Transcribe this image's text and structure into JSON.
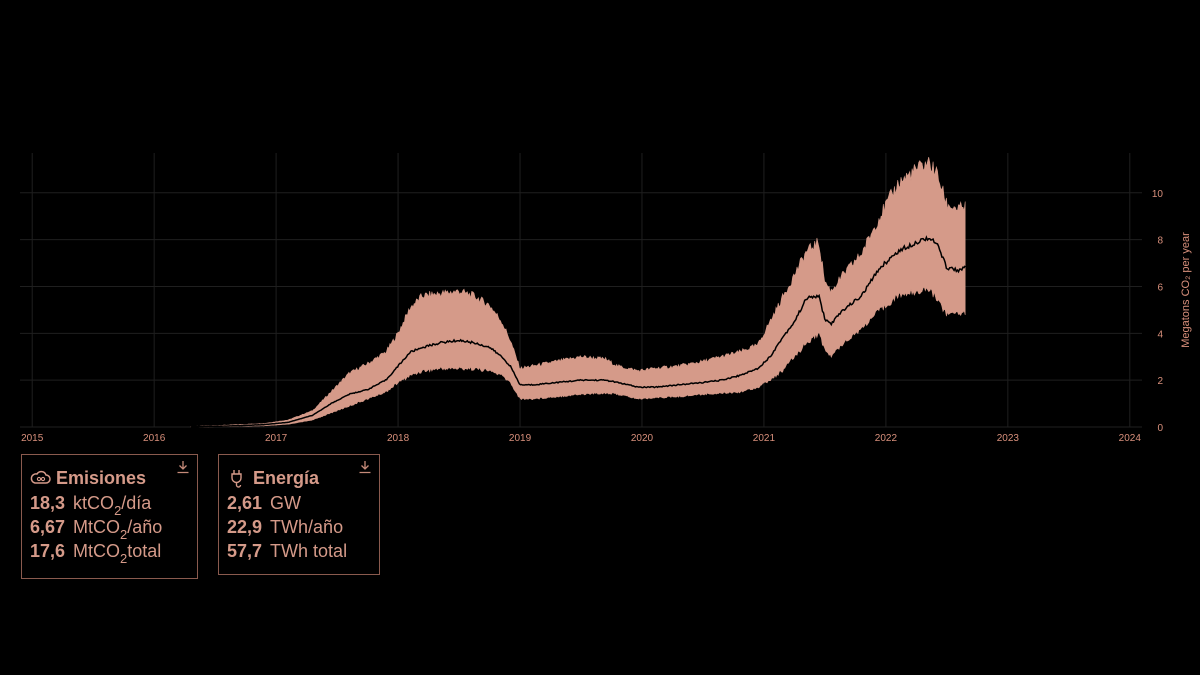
{
  "chart_data": {
    "type": "area",
    "title": "",
    "xlabel": "",
    "ylabel": "Megatons CO₂ per year",
    "x_ticks": [
      "2015",
      "2016",
      "2017",
      "2018",
      "2019",
      "2020",
      "2021",
      "2022",
      "2023",
      "2024"
    ],
    "y_ticks": [
      0,
      2,
      4,
      6,
      8,
      10
    ],
    "xlim": [
      2014.9,
      2024.1
    ],
    "ylim": [
      0,
      11.7
    ],
    "grid": true,
    "y_axis_side": "right",
    "colors": {
      "band": "#d59a89",
      "line": "#000000",
      "text": "#d9907c",
      "grid": "#1f1f1f"
    },
    "series": [
      {
        "role": "range",
        "x": [
          2016.3,
          2016.6,
          2016.9,
          2017.1,
          2017.3,
          2017.45,
          2017.6,
          2017.75,
          2017.9,
          2018.0,
          2018.1,
          2018.2,
          2018.35,
          2018.5,
          2018.62,
          2018.75,
          2018.85,
          2018.92,
          2019.0,
          2019.1,
          2019.3,
          2019.5,
          2019.7,
          2019.8,
          2019.97,
          2020.1,
          2020.3,
          2020.5,
          2020.65,
          2020.8,
          2020.95,
          2021.05,
          2021.15,
          2021.25,
          2021.35,
          2021.45,
          2021.5,
          2021.55,
          2021.65,
          2021.8,
          2021.95,
          2022.1,
          2022.25,
          2022.35,
          2022.42,
          2022.5,
          2022.6,
          2022.65
        ],
        "upper": [
          0.02,
          0.08,
          0.15,
          0.3,
          0.7,
          1.5,
          2.3,
          2.7,
          3.2,
          4.0,
          5.1,
          5.6,
          5.7,
          5.8,
          5.6,
          5.2,
          4.5,
          3.7,
          2.5,
          2.6,
          2.8,
          3.0,
          2.9,
          2.6,
          2.4,
          2.5,
          2.6,
          2.8,
          3.0,
          3.2,
          3.5,
          4.5,
          5.5,
          6.5,
          7.5,
          7.9,
          6.2,
          5.8,
          6.5,
          7.4,
          9.0,
          10.4,
          11.0,
          11.3,
          10.8,
          9.5,
          9.3,
          9.4
        ],
        "lower": [
          0.0,
          0.02,
          0.05,
          0.12,
          0.3,
          0.6,
          0.9,
          1.2,
          1.5,
          1.9,
          2.2,
          2.4,
          2.5,
          2.5,
          2.5,
          2.4,
          2.2,
          1.9,
          1.2,
          1.2,
          1.3,
          1.4,
          1.45,
          1.4,
          1.2,
          1.25,
          1.3,
          1.4,
          1.45,
          1.5,
          1.7,
          2.0,
          2.4,
          3.0,
          3.6,
          4.0,
          3.3,
          3.0,
          3.6,
          4.2,
          5.0,
          5.6,
          5.8,
          5.9,
          5.5,
          4.8,
          4.9,
          4.9
        ]
      },
      {
        "role": "central",
        "x": [
          2016.3,
          2016.6,
          2016.9,
          2017.1,
          2017.3,
          2017.45,
          2017.6,
          2017.75,
          2017.9,
          2018.0,
          2018.1,
          2018.2,
          2018.35,
          2018.5,
          2018.62,
          2018.75,
          2018.85,
          2018.92,
          2019.0,
          2019.1,
          2019.3,
          2019.5,
          2019.7,
          2019.8,
          2019.97,
          2020.1,
          2020.3,
          2020.5,
          2020.65,
          2020.8,
          2020.95,
          2021.05,
          2021.15,
          2021.25,
          2021.35,
          2021.45,
          2021.5,
          2021.55,
          2021.65,
          2021.8,
          2021.95,
          2022.1,
          2022.25,
          2022.35,
          2022.42,
          2022.5,
          2022.6,
          2022.65
        ],
        "values": [
          0.01,
          0.04,
          0.1,
          0.2,
          0.5,
          1.0,
          1.4,
          1.6,
          2.0,
          2.6,
          3.2,
          3.4,
          3.6,
          3.7,
          3.6,
          3.4,
          3.0,
          2.6,
          1.8,
          1.8,
          1.9,
          2.0,
          2.0,
          1.9,
          1.7,
          1.7,
          1.8,
          1.9,
          2.0,
          2.2,
          2.5,
          3.0,
          3.8,
          4.5,
          5.5,
          5.6,
          4.6,
          4.4,
          5.0,
          5.6,
          6.8,
          7.5,
          7.9,
          8.1,
          7.8,
          6.8,
          6.7,
          6.8
        ]
      }
    ]
  },
  "cards": {
    "emissions": {
      "title": "Emisiones",
      "icon": "cloud-co2-icon",
      "rows": [
        {
          "value": "18,3",
          "unit_prefix": "ktCO",
          "unit_sub": "2",
          "unit_suffix": "/día"
        },
        {
          "value": "6,67",
          "unit_prefix": "MtCO",
          "unit_sub": "2",
          "unit_suffix": "/año"
        },
        {
          "value": "17,6",
          "unit_prefix": "MtCO",
          "unit_sub": "2",
          "unit_suffix": "total"
        }
      ]
    },
    "energy": {
      "title": "Energía",
      "icon": "plug-icon",
      "rows": [
        {
          "value": "2,61",
          "unit": "GW"
        },
        {
          "value": "22,9",
          "unit": "TWh/año"
        },
        {
          "value": "57,7",
          "unit": "TWh total"
        }
      ]
    }
  }
}
